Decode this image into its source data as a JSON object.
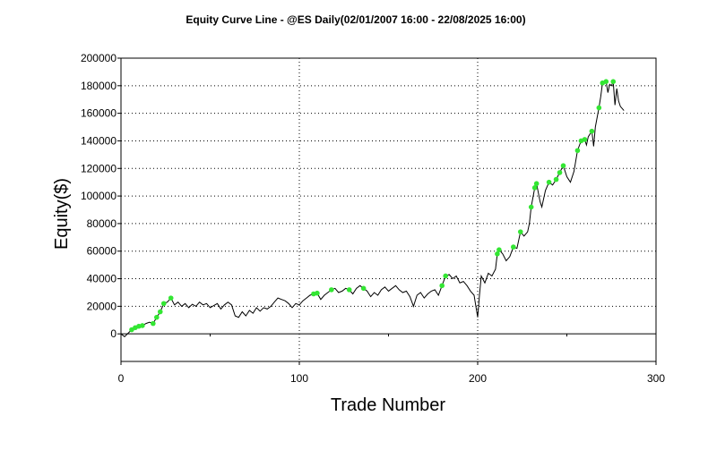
{
  "chart_data": {
    "type": "line",
    "title": "Equity Curve Line - @ES Daily(02/01/2007 16:00 - 22/08/2025 16:00)",
    "xlabel": "Trade Number",
    "ylabel": "Equity($)",
    "xlim": [
      0,
      300
    ],
    "ylim": [
      -20000,
      200000
    ],
    "x_ticks": [
      0,
      100,
      200,
      300
    ],
    "y_ticks": [
      0,
      20000,
      40000,
      60000,
      80000,
      100000,
      120000,
      140000,
      160000,
      180000,
      200000
    ],
    "grid": "dotted",
    "line_color": "#000000",
    "marker_color": "#33e633",
    "series": [
      {
        "values": [
          [
            0,
            0
          ],
          [
            2,
            -2000
          ],
          [
            4,
            500
          ],
          [
            6,
            3000
          ],
          [
            8,
            4500
          ],
          [
            10,
            5500
          ],
          [
            12,
            6000
          ],
          [
            14,
            7500
          ],
          [
            16,
            8500
          ],
          [
            18,
            7500
          ],
          [
            20,
            12000
          ],
          [
            22,
            16000
          ],
          [
            24,
            22000
          ],
          [
            26,
            23000
          ],
          [
            28,
            26000
          ],
          [
            30,
            21000
          ],
          [
            32,
            23000
          ],
          [
            34,
            20000
          ],
          [
            36,
            22000
          ],
          [
            38,
            19000
          ],
          [
            40,
            21500
          ],
          [
            42,
            20000
          ],
          [
            44,
            23000
          ],
          [
            46,
            21000
          ],
          [
            48,
            22000
          ],
          [
            50,
            19000
          ],
          [
            52,
            20500
          ],
          [
            54,
            22000
          ],
          [
            56,
            18000
          ],
          [
            58,
            21000
          ],
          [
            60,
            23000
          ],
          [
            62,
            21000
          ],
          [
            64,
            13000
          ],
          [
            66,
            12000
          ],
          [
            68,
            16000
          ],
          [
            70,
            13000
          ],
          [
            72,
            17000
          ],
          [
            74,
            15000
          ],
          [
            76,
            19000
          ],
          [
            78,
            16500
          ],
          [
            80,
            19000
          ],
          [
            82,
            18000
          ],
          [
            84,
            20000
          ],
          [
            86,
            23000
          ],
          [
            88,
            26000
          ],
          [
            90,
            25000
          ],
          [
            92,
            24000
          ],
          [
            94,
            22000
          ],
          [
            96,
            19000
          ],
          [
            98,
            22000
          ],
          [
            100,
            21000
          ],
          [
            102,
            24000
          ],
          [
            104,
            26000
          ],
          [
            106,
            28000
          ],
          [
            108,
            29000
          ],
          [
            110,
            29500
          ],
          [
            112,
            25000
          ],
          [
            114,
            28000
          ],
          [
            116,
            30000
          ],
          [
            118,
            32000
          ],
          [
            120,
            33000
          ],
          [
            122,
            30000
          ],
          [
            124,
            31000
          ],
          [
            126,
            33000
          ],
          [
            128,
            32000
          ],
          [
            130,
            29000
          ],
          [
            132,
            33000
          ],
          [
            134,
            35000
          ],
          [
            136,
            33000
          ],
          [
            138,
            31000
          ],
          [
            140,
            27000
          ],
          [
            142,
            30000
          ],
          [
            144,
            28000
          ],
          [
            146,
            32000
          ],
          [
            148,
            34000
          ],
          [
            150,
            31000
          ],
          [
            152,
            33000
          ],
          [
            154,
            35000
          ],
          [
            156,
            32000
          ],
          [
            158,
            30000
          ],
          [
            160,
            31000
          ],
          [
            162,
            27000
          ],
          [
            164,
            20000
          ],
          [
            166,
            28000
          ],
          [
            168,
            30000
          ],
          [
            170,
            26000
          ],
          [
            172,
            29000
          ],
          [
            174,
            31000
          ],
          [
            176,
            32000
          ],
          [
            178,
            28000
          ],
          [
            180,
            35000
          ],
          [
            182,
            42000
          ],
          [
            184,
            43000
          ],
          [
            186,
            40000
          ],
          [
            188,
            42000
          ],
          [
            190,
            37000
          ],
          [
            192,
            38000
          ],
          [
            194,
            35000
          ],
          [
            196,
            31000
          ],
          [
            198,
            28000
          ],
          [
            199,
            20000
          ],
          [
            200,
            12000
          ],
          [
            201,
            28000
          ],
          [
            202,
            42000
          ],
          [
            204,
            37000
          ],
          [
            206,
            44000
          ],
          [
            208,
            42000
          ],
          [
            210,
            47000
          ],
          [
            211,
            58000
          ],
          [
            212,
            61000
          ],
          [
            214,
            58000
          ],
          [
            216,
            53000
          ],
          [
            218,
            56000
          ],
          [
            220,
            63000
          ],
          [
            222,
            62000
          ],
          [
            224,
            74000
          ],
          [
            226,
            71000
          ],
          [
            228,
            74000
          ],
          [
            229,
            80000
          ],
          [
            230,
            92000
          ],
          [
            231,
            99000
          ],
          [
            232,
            106000
          ],
          [
            233,
            109000
          ],
          [
            235,
            96000
          ],
          [
            236,
            92000
          ],
          [
            238,
            104000
          ],
          [
            240,
            110000
          ],
          [
            242,
            108000
          ],
          [
            244,
            112000
          ],
          [
            246,
            117000
          ],
          [
            248,
            122000
          ],
          [
            250,
            114000
          ],
          [
            252,
            110000
          ],
          [
            254,
            118000
          ],
          [
            256,
            133000
          ],
          [
            258,
            140000
          ],
          [
            260,
            141000
          ],
          [
            261,
            137000
          ],
          [
            262,
            143000
          ],
          [
            264,
            147000
          ],
          [
            265,
            136000
          ],
          [
            266,
            150000
          ],
          [
            268,
            164000
          ],
          [
            269,
            172000
          ],
          [
            270,
            182000
          ],
          [
            272,
            183000
          ],
          [
            273,
            175000
          ],
          [
            274,
            181000
          ],
          [
            275,
            180000
          ],
          [
            276,
            183000
          ],
          [
            277,
            166000
          ],
          [
            278,
            178000
          ],
          [
            279,
            169000
          ],
          [
            280,
            165000
          ],
          [
            282,
            162000
          ]
        ],
        "peaks": [
          6,
          8,
          10,
          12,
          18,
          20,
          22,
          24,
          28,
          108,
          110,
          118,
          128,
          136,
          180,
          182,
          211,
          212,
          220,
          224,
          230,
          232,
          233,
          240,
          244,
          246,
          248,
          256,
          258,
          260,
          264,
          268,
          270,
          272,
          276
        ]
      }
    ]
  }
}
